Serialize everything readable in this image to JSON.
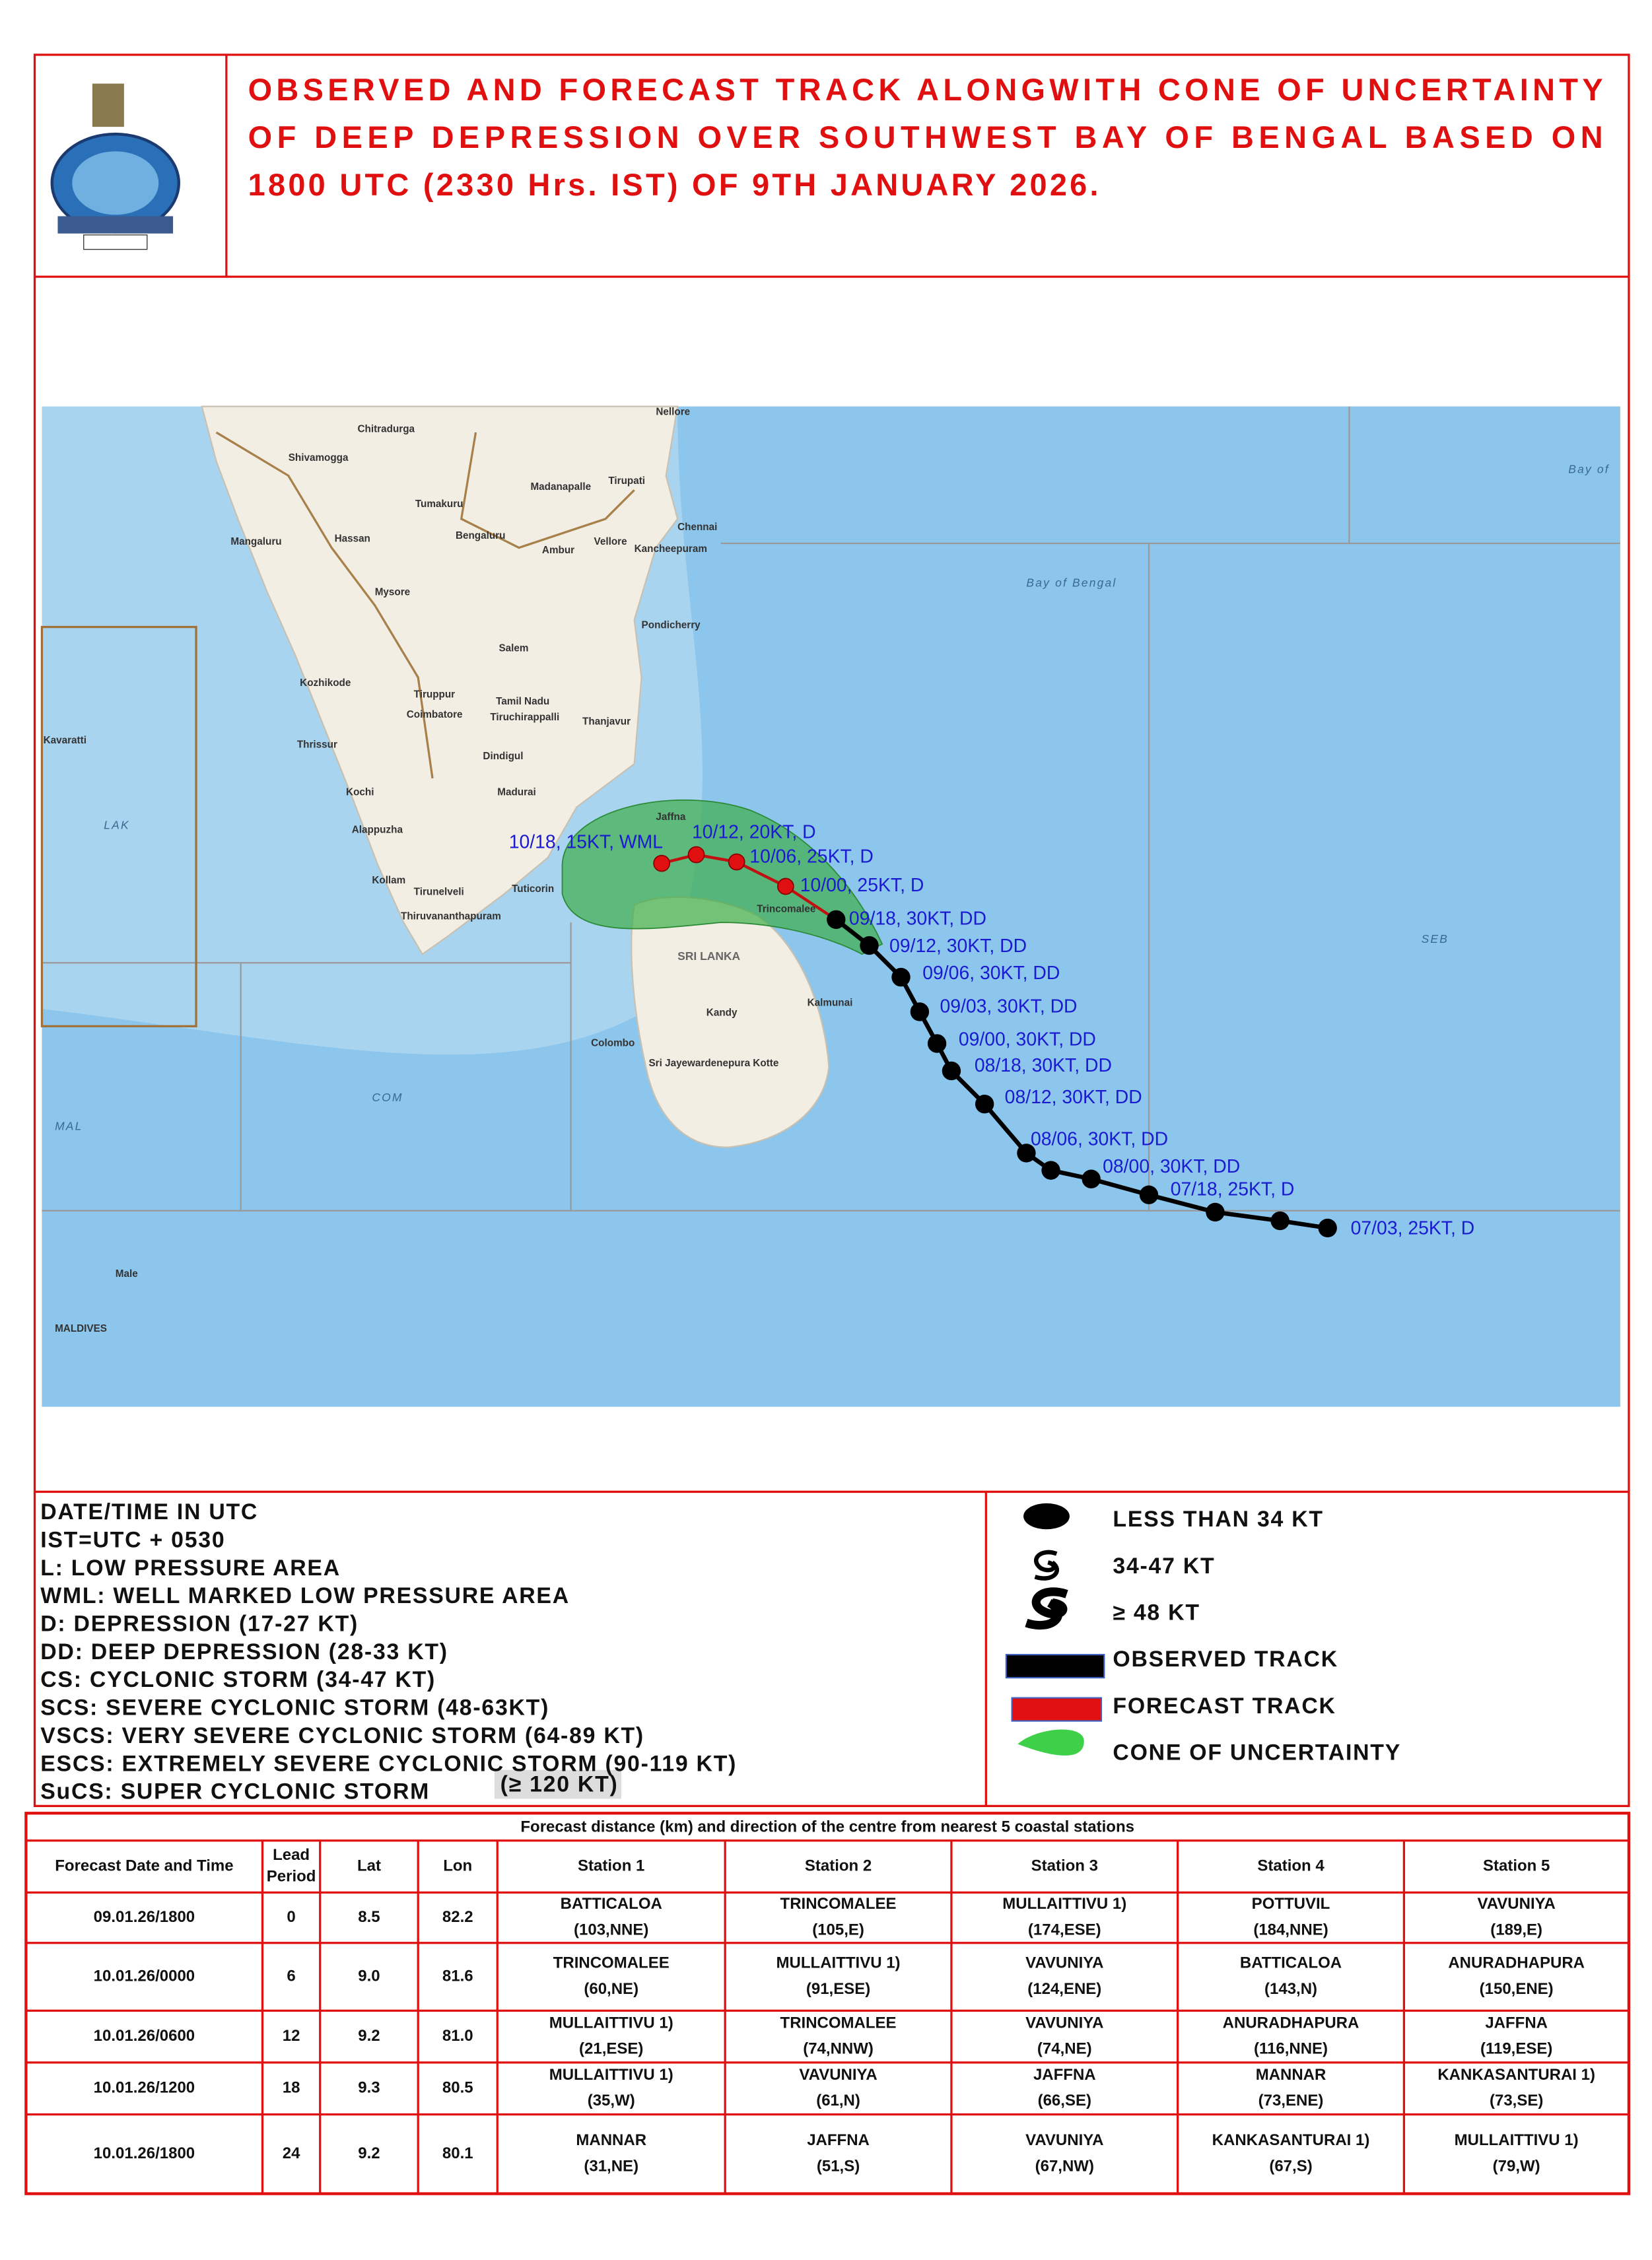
{
  "header": {
    "title_lines": [
      "OBSERVED AND FORECAST TRACK ALONGWITH CONE OF UNCERTAINTY",
      "OF DEEP DEPRESSION OVER SOUTHWEST BAY OF BENGAL BASED ON",
      "1800 UTC (2330 Hrs. IST) OF 9TH JANUARY 2026."
    ]
  },
  "map": {
    "places": [
      "Nellore",
      "Chitradurga",
      "Shivamogga",
      "Tirupati",
      "Madanapalle",
      "Tumakuru",
      "Chennai",
      "Mangaluru",
      "Hassan",
      "Bengaluru",
      "Vellore",
      "Ambur",
      "Kancheepuram",
      "Mysore",
      "Pondicherry",
      "Salem",
      "Kozhikode",
      "Tiruppur",
      "Coimbatore",
      "Tamil Nadu",
      "Tiruchirappalli",
      "Thanjavur",
      "Thrissur",
      "Dindigul",
      "Kochi",
      "Madurai",
      "Alappuzha",
      "Kollam",
      "Tirunelveli",
      "Thiruvananthapuram",
      "Tuticorin",
      "Jaffna",
      "Trincomalee",
      "SRI LANKA",
      "Kalmunai",
      "Kandy",
      "Colombo",
      "Sri Jayewardenepura Kotte",
      "Bay of Bengal",
      "Bay of",
      "LAK",
      "COM",
      "MAL",
      "SEB",
      "Male",
      "MALDIVES",
      "Kavaratti"
    ],
    "observed_labels": [
      "07/03, 25KT, D",
      "07/18, 25KT, D",
      "08/00, 30KT, DD",
      "08/06, 30KT, DD",
      "08/12, 30KT, DD",
      "08/18, 30KT, DD",
      "09/00, 30KT, DD",
      "09/03, 30KT, DD",
      "09/06, 30KT, DD",
      "09/12, 30KT, DD",
      "09/18, 30KT, DD"
    ],
    "forecast_labels": [
      "10/00, 25KT, D",
      "10/06, 25KT, D",
      "10/12, 20KT, D",
      "10/18, 15KT, WML"
    ]
  },
  "legend": {
    "abbreviations": [
      "DATE/TIME IN UTC",
      "IST=UTC + 0530",
      "L: LOW PRESSURE AREA",
      "WML: WELL MARKED LOW PRESSURE AREA",
      "D: DEPRESSION (17-27 KT)",
      "DD: DEEP DEPRESSION (28-33 KT)",
      "CS: CYCLONIC STORM (34-47 KT)",
      "SCS: SEVERE CYCLONIC STORM (48-63KT)",
      "VSCS: VERY SEVERE CYCLONIC STORM (64-89 KT)",
      "ESCS: EXTREMELY SEVERE CYCLONIC STORM (90-119 KT)",
      "SuCS: SUPER CYCLONIC STORM"
    ],
    "last_badge": "(≥ 120 KT)",
    "symbols": [
      "LESS THAN 34 KT",
      "34-47 KT",
      "≥ 48 KT",
      "OBSERVED TRACK",
      "FORECAST TRACK",
      "CONE OF UNCERTAINTY"
    ]
  },
  "table": {
    "caption": "Forecast distance (km)  and direction of the centre from nearest 5 coastal  stations",
    "headers": [
      [
        "Forecast Date and Time"
      ],
      [
        "Lead",
        "Period"
      ],
      [
        "Lat"
      ],
      [
        "Lon"
      ],
      [
        "Station 1"
      ],
      [
        "Station 2"
      ],
      [
        "Station 3"
      ],
      [
        "Station 4"
      ],
      [
        "Station 5"
      ]
    ],
    "rows": [
      [
        "09.01.26/1800",
        "0",
        "8.5",
        "82.2",
        [
          "BATTICALOA",
          "(103,NNE)"
        ],
        [
          "TRINCOMALEE",
          "(105,E)"
        ],
        [
          "MULLAITTIVU 1)",
          "(174,ESE)"
        ],
        [
          "POTTUVIL",
          "(184,NNE)"
        ],
        [
          "VAVUNIYA",
          "(189,E)"
        ]
      ],
      [
        "10.01.26/0000",
        "6",
        "9.0",
        "81.6",
        [
          "TRINCOMALEE",
          "(60,NE)"
        ],
        [
          "MULLAITTIVU 1)",
          "(91,ESE)"
        ],
        [
          "VAVUNIYA",
          "(124,ENE)"
        ],
        [
          "BATTICALOA",
          "(143,N)"
        ],
        [
          "ANURADHAPURA",
          "(150,ENE)"
        ]
      ],
      [
        "10.01.26/0600",
        "12",
        "9.2",
        "81.0",
        [
          "MULLAITTIVU 1)",
          "(21,ESE)"
        ],
        [
          "TRINCOMALEE",
          "(74,NNW)"
        ],
        [
          "VAVUNIYA",
          "(74,NE)"
        ],
        [
          "ANURADHAPURA",
          "(116,NNE)"
        ],
        [
          "JAFFNA",
          "(119,ESE)"
        ]
      ],
      [
        "10.01.26/1200",
        "18",
        "9.3",
        "80.5",
        [
          "MULLAITTIVU 1)",
          "(35,W)"
        ],
        [
          "VAVUNIYA",
          "(61,N)"
        ],
        [
          "JAFFNA",
          "(66,SE)"
        ],
        [
          "MANNAR",
          "(73,ENE)"
        ],
        [
          "KANKASANTURAI 1)",
          "(73,SE)"
        ]
      ],
      [
        "10.01.26/1800",
        "24",
        "9.2",
        "80.1",
        [
          "MANNAR",
          "(31,NE)"
        ],
        [
          "JAFFNA",
          "(51,S)"
        ],
        [
          "VAVUNIYA",
          "(67,NW)"
        ],
        [
          "KANKASANTURAI 1)",
          "(67,S)"
        ],
        [
          "MULLAITTIVU 1)",
          "(79,W)"
        ]
      ]
    ]
  }
}
